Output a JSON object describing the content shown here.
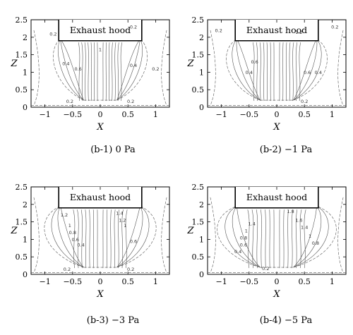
{
  "chart_data": [
    {
      "type": "contour",
      "caption": "(b-1) 0 Pa",
      "xlabel": "X",
      "ylabel": "Z",
      "xlim": [
        -1.25,
        1.25
      ],
      "ylim": [
        0,
        2.5
      ],
      "xticks": [
        "−1",
        "−0.5",
        "0",
        "0.5",
        "1"
      ],
      "yticks": [
        "0",
        "0.5",
        "1",
        "1.5",
        "2",
        "2.5"
      ],
      "hood_label": "Exhaust hood",
      "contour_labels": [
        "0.2",
        "0.4",
        "0.6",
        "1",
        "0.2",
        "0.4",
        "0.2",
        "0.2",
        "0.2"
      ]
    },
    {
      "type": "contour",
      "caption": "(b-2) −1 Pa",
      "xlabel": "X",
      "ylabel": "Z",
      "xlim": [
        -1.25,
        1.25
      ],
      "ylim": [
        0,
        2.5
      ],
      "xticks": [
        "−1",
        "−0.5",
        "0",
        "0.5",
        "1"
      ],
      "yticks": [
        "0",
        "0.5",
        "1",
        "1.5",
        "2",
        "2.5"
      ],
      "hood_label": "Exhaust hood",
      "contour_labels": [
        "0.2",
        "0.4",
        "0.6",
        "1.2",
        "0.6",
        "0.4",
        "0.2",
        "0.2"
      ]
    },
    {
      "type": "contour",
      "caption": "(b-3) −3 Pa",
      "xlabel": "X",
      "ylabel": "Z",
      "xlim": [
        -1.25,
        1.25
      ],
      "ylim": [
        0,
        2.5
      ],
      "xticks": [
        "−1",
        "−0.5",
        "0",
        "0.5",
        "1"
      ],
      "yticks": [
        "0",
        "0.5",
        "1",
        "1.5",
        "2",
        "2.5"
      ],
      "hood_label": "Exhaust hood",
      "contour_labels": [
        "1.2",
        "1",
        "0.8",
        "0.6",
        "0.4",
        "1.4",
        "1.2",
        "1",
        "0.6",
        "0.2",
        "0.2"
      ]
    },
    {
      "type": "contour",
      "caption": "(b-4) −5 Pa",
      "xlabel": "X",
      "ylabel": "Z",
      "xlim": [
        -1.25,
        1.25
      ],
      "ylim": [
        0,
        2.5
      ],
      "xticks": [
        "−1",
        "−0.5",
        "0",
        "0.5",
        "1"
      ],
      "yticks": [
        "0",
        "0.5",
        "1",
        "1.5",
        "2",
        "2.5"
      ],
      "hood_label": "Exhaust hood",
      "contour_labels": [
        "1.4",
        "1",
        "0.8",
        "0.6",
        "0.4",
        "1.8",
        "1.6",
        "1.4",
        "1",
        "0.8",
        "0.2"
      ]
    }
  ]
}
